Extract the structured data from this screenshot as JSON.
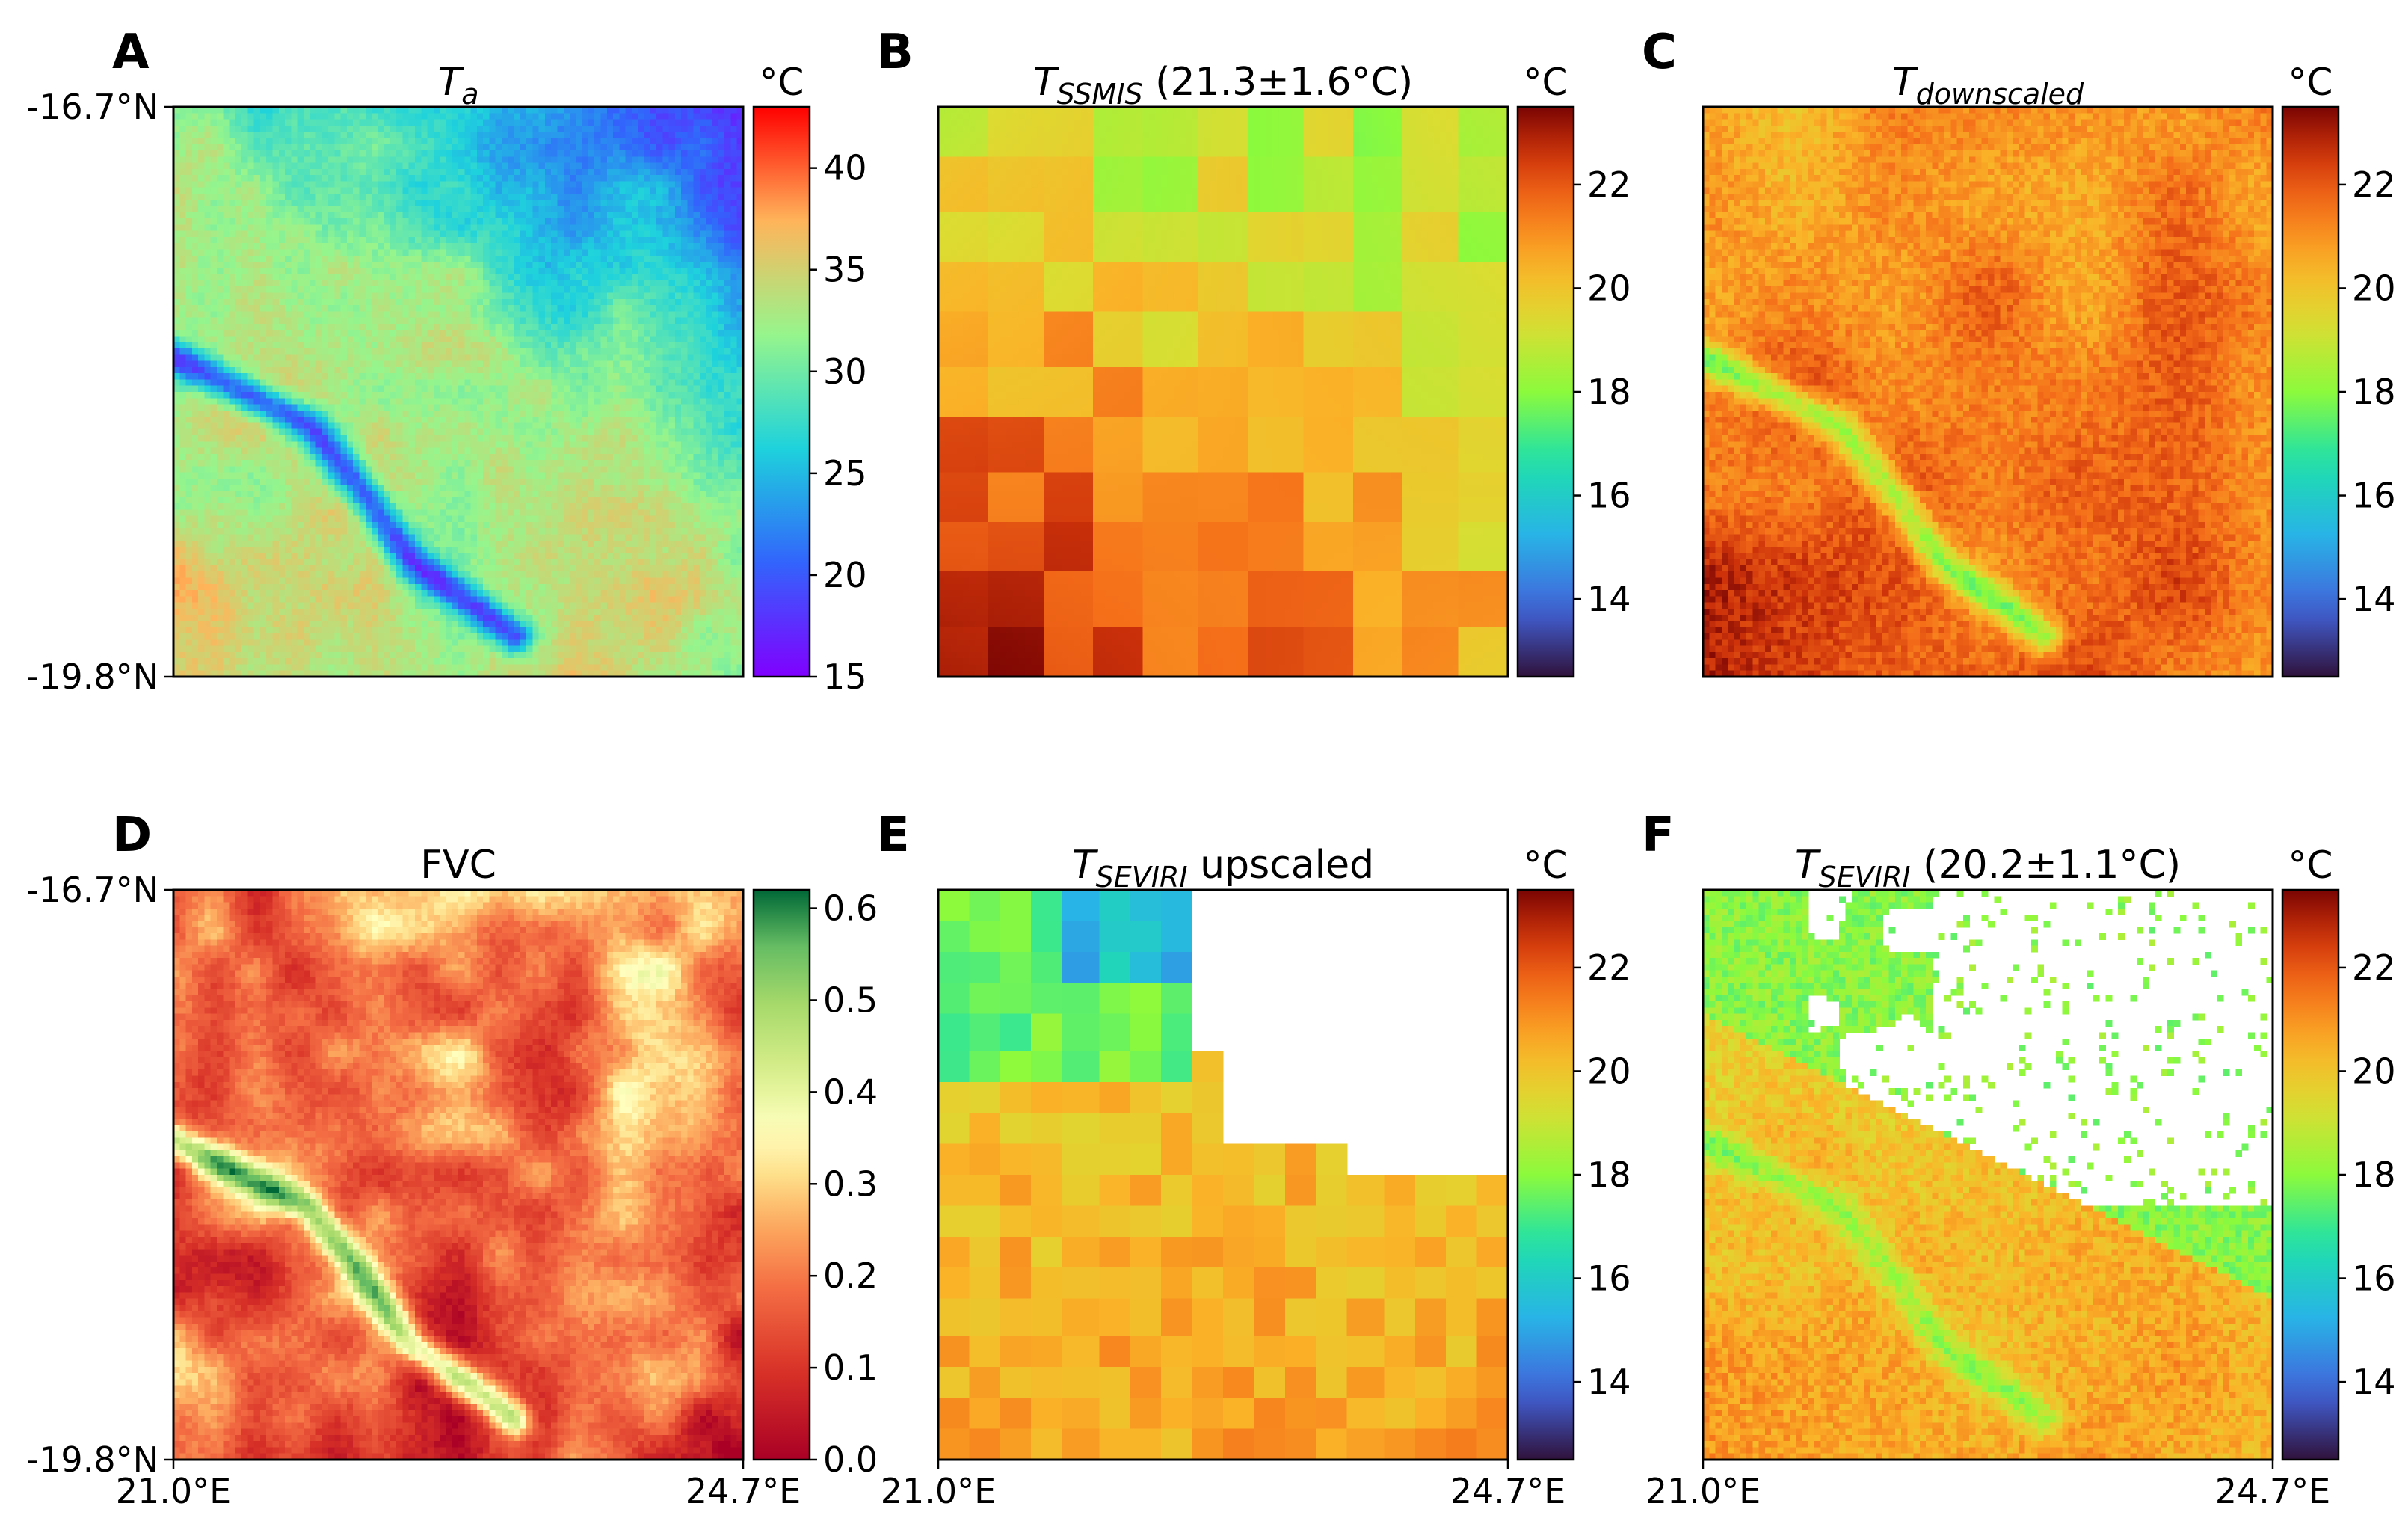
{
  "chart_data": [
    {
      "type": "heatmap",
      "panel": "A",
      "title_main": "T",
      "title_sub": "a",
      "title_suffix": "",
      "unit": "°C",
      "colormap": "rainbow",
      "clim": [
        15,
        43
      ],
      "colorbar_ticks": [
        "15",
        "20",
        "25",
        "30",
        "35",
        "40"
      ],
      "colorbar_values": [
        15,
        20,
        25,
        30,
        35,
        40
      ],
      "ylabels": [
        "-16.7°N",
        "-19.8°N"
      ],
      "xlabels": [],
      "field": "ta"
    },
    {
      "type": "heatmap",
      "panel": "B",
      "title_main": "T",
      "title_sub": "SSMIS",
      "title_suffix": " (21.3±1.6°C)",
      "unit": "°C",
      "colormap": "turbo",
      "clim": [
        12.5,
        23.5
      ],
      "colorbar_ticks": [
        "14",
        "16",
        "18",
        "20",
        "22"
      ],
      "colorbar_values": [
        14,
        16,
        18,
        20,
        22
      ],
      "ylabels": [],
      "xlabels": [],
      "field": "ssmis"
    },
    {
      "type": "heatmap",
      "panel": "C",
      "title_main": "T",
      "title_sub": "downscaled",
      "title_suffix": "",
      "unit": "°C",
      "colormap": "turbo",
      "clim": [
        12.5,
        23.5
      ],
      "colorbar_ticks": [
        "14",
        "16",
        "18",
        "20",
        "22"
      ],
      "colorbar_values": [
        14,
        16,
        18,
        20,
        22
      ],
      "ylabels": [],
      "xlabels": [],
      "field": "downscaled"
    },
    {
      "type": "heatmap",
      "panel": "D",
      "title_main": "FVC",
      "title_sub": "",
      "title_suffix": "",
      "unit": "",
      "colormap": "rdylgn",
      "clim": [
        0.0,
        0.62
      ],
      "colorbar_ticks": [
        "0.0",
        "0.1",
        "0.2",
        "0.3",
        "0.4",
        "0.5",
        "0.6"
      ],
      "colorbar_values": [
        0.0,
        0.1,
        0.2,
        0.3,
        0.4,
        0.5,
        0.6
      ],
      "ylabels": [
        "-16.7°N",
        "-19.8°N"
      ],
      "xlabels": [
        "21.0°E",
        "24.7°E"
      ],
      "field": "fvc"
    },
    {
      "type": "heatmap",
      "panel": "E",
      "title_main": "T",
      "title_sub": "SEVIRI",
      "title_suffix": " upscaled",
      "unit": "°C",
      "colormap": "turbo",
      "clim": [
        12.5,
        23.5
      ],
      "colorbar_ticks": [
        "14",
        "16",
        "18",
        "20",
        "22"
      ],
      "colorbar_values": [
        14,
        16,
        18,
        20,
        22
      ],
      "ylabels": [],
      "xlabels": [
        "21.0°E",
        "24.7°E"
      ],
      "field": "seviri_up"
    },
    {
      "type": "heatmap",
      "panel": "F",
      "title_main": "T",
      "title_sub": "SEVIRI",
      "title_suffix": " (20.2±1.1°C)",
      "unit": "°C",
      "colormap": "turbo",
      "clim": [
        12.5,
        23.5
      ],
      "colorbar_ticks": [
        "14",
        "16",
        "18",
        "20",
        "22"
      ],
      "colorbar_values": [
        14,
        16,
        18,
        20,
        22
      ],
      "ylabels": [],
      "xlabels": [
        "21.0°E",
        "24.7°E"
      ],
      "field": "seviri"
    }
  ]
}
